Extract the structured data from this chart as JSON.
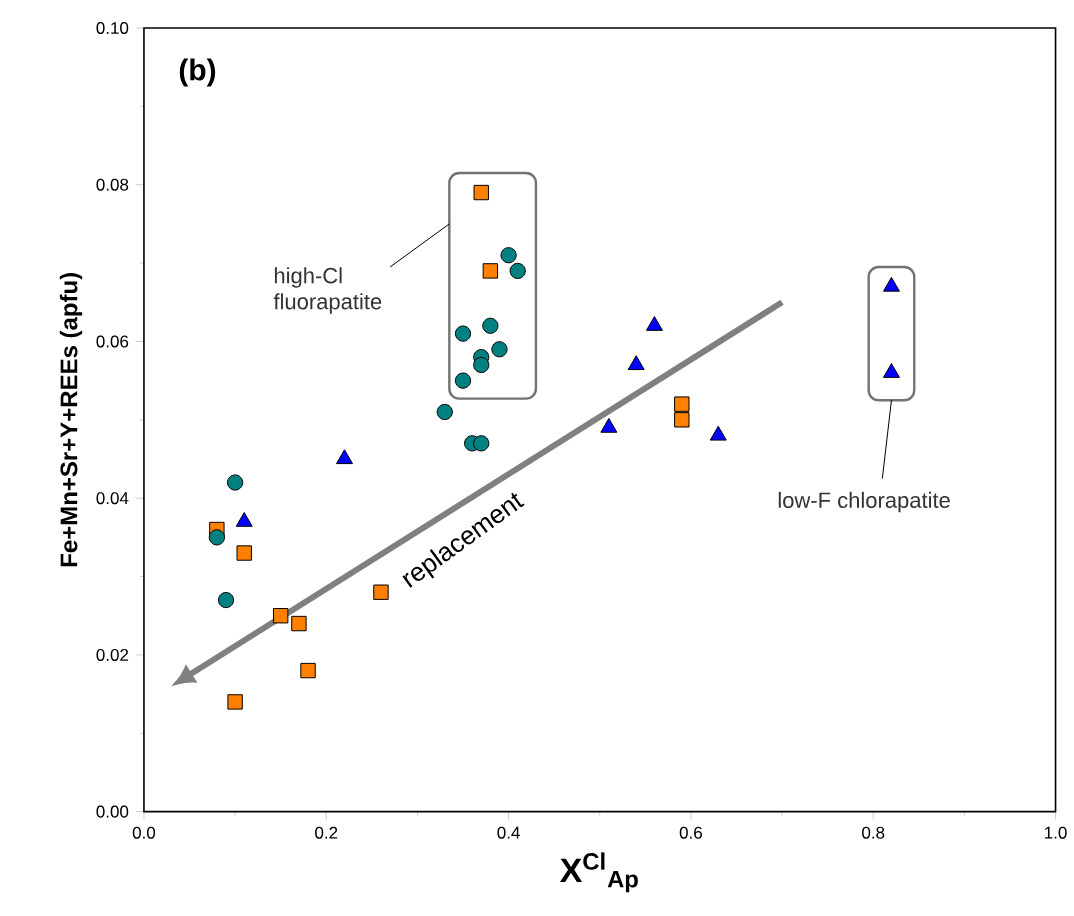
{
  "chart_data": {
    "type": "scatter",
    "xlabel": "X$^{Cl}$$_{Ap}$",
    "ylabel": "Fe+Mn+Sr+Y+REEs (apfu)",
    "annotations": [
      "(b)",
      "high-Cl fluorapatite",
      "low-F chlorapatite",
      "replacement"
    ],
    "xlim": [
      0,
      1
    ],
    "ylim": [
      0,
      0.1
    ],
    "xticks": [
      {
        "value": 0,
        "label": "0.0"
      },
      {
        "value": 0.2,
        "label": "0.2"
      },
      {
        "value": 0.4,
        "label": "0.4"
      },
      {
        "value": 0.6,
        "label": "0.6"
      },
      {
        "value": 0.8,
        "label": "0.8"
      },
      {
        "value": 1,
        "label": "1.0"
      }
    ],
    "yticks": [
      {
        "value": 0,
        "label": "0.00"
      },
      {
        "value": 0.02,
        "label": "0.02"
      },
      {
        "value": 0.04,
        "label": "0.04"
      },
      {
        "value": 0.06,
        "label": "0.06"
      },
      {
        "value": 0.08,
        "label": "0.08"
      },
      {
        "value": 0.1,
        "label": "0.10"
      }
    ],
    "grid": false,
    "series": [
      {
        "color": "#ff7f00",
        "marker": "square",
        "x": [
          0.08,
          0.11,
          0.15,
          0.17,
          0.18,
          0.1,
          0.26,
          0.59,
          0.59,
          0.37,
          0.38
        ],
        "values": [
          0.036,
          0.033,
          0.025,
          0.024,
          0.018,
          0.014,
          0.028,
          0.052,
          0.05,
          0.079,
          0.069
        ]
      },
      {
        "color": "#008080",
        "marker": "circle",
        "x": [
          0.1,
          0.08,
          0.09,
          0.33,
          0.36,
          0.37,
          0.35,
          0.38,
          0.39,
          0.37,
          0.37,
          0.35,
          0.4,
          0.41
        ],
        "values": [
          0.042,
          0.035,
          0.027,
          0.051,
          0.047,
          0.047,
          0.061,
          0.062,
          0.059,
          0.058,
          0.057,
          0.055,
          0.071,
          0.069
        ]
      },
      {
        "color": "#0000ff",
        "marker": "triangle",
        "x": [
          0.11,
          0.22,
          0.51,
          0.54,
          0.56,
          0.63,
          0.82,
          0.82
        ],
        "values": [
          0.037,
          0.045,
          0.049,
          0.057,
          0.062,
          0.048,
          0.067,
          0.056
        ]
      }
    ]
  }
}
